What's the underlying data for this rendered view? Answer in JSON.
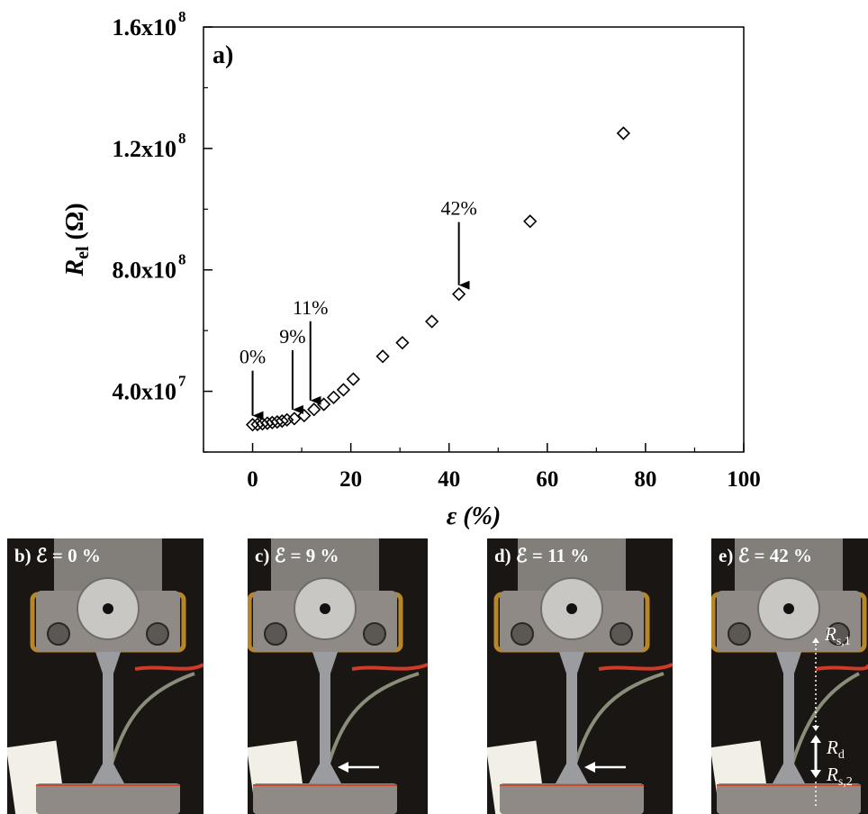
{
  "chart_data": {
    "type": "scatter",
    "panel_label": "a)",
    "xlabel": "ε (%)",
    "ylabel": "Rel (Ω)",
    "xlim": [
      -10,
      100
    ],
    "ylim": [
      20000000,
      160000000
    ],
    "x_ticks": [
      0,
      20,
      40,
      60,
      80,
      100
    ],
    "x_tick_labels": [
      "0",
      "20",
      "40",
      "60",
      "80",
      "100"
    ],
    "y_ticks": [
      40000000,
      80000000,
      120000000,
      160000000
    ],
    "y_tick_labels": [
      "4.0x10",
      "8.0x10",
      "1.2x10",
      "1.6x10"
    ],
    "y_tick_exponent": "8",
    "y_tick_exponent_low": "7",
    "grid": false,
    "marker": "open-diamond",
    "series": [
      {
        "x": [
          0,
          1,
          2,
          3,
          4,
          5,
          6,
          7,
          8.5,
          10.5,
          12.5,
          14.5,
          16.5,
          18.5,
          20.5,
          26.5,
          30.5,
          36.5,
          42,
          56.5,
          75.5
        ],
        "y": [
          29000000,
          29100000,
          29300000,
          29500000,
          29700000,
          29900000,
          30200000,
          30600000,
          31000000,
          32000000,
          34000000,
          35700000,
          38000000,
          40500000,
          44000000,
          51500000,
          56000000,
          63000000,
          72000000,
          96000000,
          125000000
        ]
      }
    ],
    "annotations": [
      {
        "text": "0%",
        "x": 0,
        "y": 29000000
      },
      {
        "text": "9%",
        "x": 8.5,
        "y": 31000000
      },
      {
        "text": "11%",
        "x": 12.5,
        "y": 34000000
      },
      {
        "text": "42%",
        "x": 42,
        "y": 72000000
      }
    ]
  },
  "photos": [
    {
      "id": "b",
      "label": "b) ℰ = 0 %",
      "arrow": false
    },
    {
      "id": "c",
      "label": "c) ℰ = 9 %",
      "arrow": true
    },
    {
      "id": "d",
      "label": "d) ℰ = 11 %",
      "arrow": true
    },
    {
      "id": "e",
      "label": "e) ℰ = 42 %",
      "arrow": false
    }
  ],
  "resistance_labels": {
    "rs1_main": "R",
    "rs1_sub": "s,1",
    "rd_main": "R",
    "rd_sub": "d",
    "rs2_main": "R",
    "rs2_sub": "s,2"
  },
  "colors": {
    "photo_background": "#1a1613",
    "clamp": "#8f8a86",
    "tape": "#b8862a",
    "wire_red": "#d03a2a",
    "specimen": "#9a9ca0"
  }
}
